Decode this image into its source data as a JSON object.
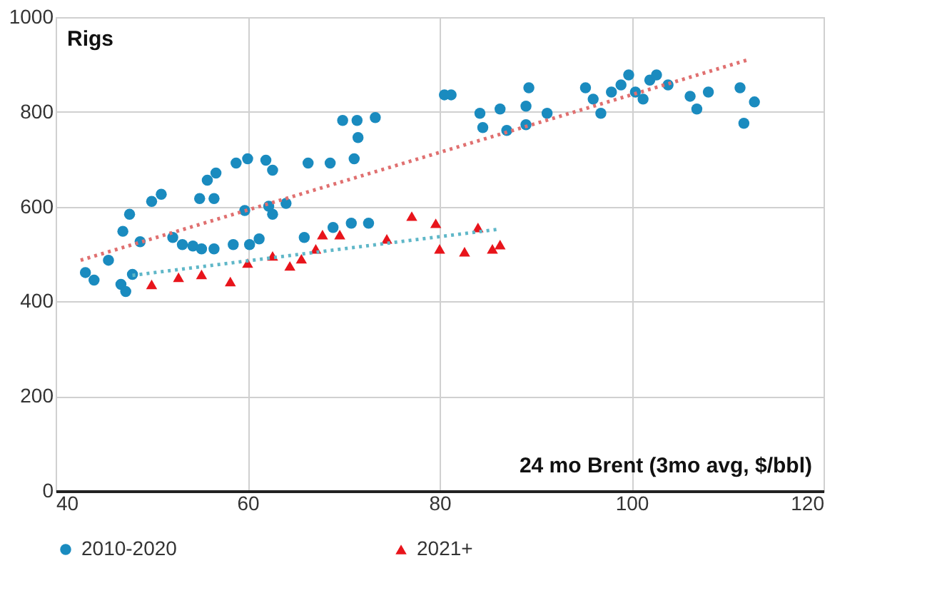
{
  "chart_data": {
    "type": "scatter",
    "ylabel": "Rigs",
    "xlabel": "24 mo Brent (3mo avg, $/bbl)",
    "xlim": [
      40,
      120
    ],
    "xticks": [
      40,
      60,
      80,
      100,
      120
    ],
    "ylim": [
      0,
      1000
    ],
    "yticks": [
      0,
      200,
      400,
      600,
      800,
      1000
    ],
    "grid": true,
    "legend": "bottom",
    "series": [
      {
        "name": "2010-2020",
        "color": "#1a8bbf",
        "marker": "circle",
        "x": [
          43.1,
          44.0,
          45.5,
          46.8,
          47.3,
          48.0,
          47.0,
          47.7,
          48.8,
          50.0,
          51.0,
          52.2,
          53.2,
          54.3,
          55.2,
          56.5,
          58.5,
          60.2,
          61.2,
          55.0,
          55.8,
          56.7,
          58.8,
          60.0,
          61.9,
          62.6,
          56.5,
          59.7,
          62.2,
          64.0,
          62.6,
          66.3,
          68.6,
          71.1,
          65.9,
          68.9,
          70.8,
          72.6,
          69.9,
          71.4,
          73.3,
          71.5,
          80.5,
          81.2,
          84.2,
          84.5,
          86.3,
          87.0,
          89.0,
          89.3,
          89.0,
          91.2,
          95.2,
          96.0,
          96.8,
          97.9,
          98.9,
          99.7,
          100.4,
          101.2,
          101.9,
          102.6,
          103.8,
          106.1,
          106.8,
          108.0,
          111.3,
          111.7,
          112.8
        ],
        "values": [
          461,
          445,
          487,
          436,
          421,
          457,
          548,
          584,
          526,
          611,
          626,
          535,
          520,
          517,
          511,
          511,
          520,
          520,
          532,
          617,
          656,
          671,
          692,
          701,
          698,
          677,
          617,
          592,
          601,
          607,
          584,
          692,
          692,
          701,
          535,
          556,
          565,
          565,
          782,
          782,
          788,
          746,
          836,
          836,
          797,
          767,
          806,
          761,
          812,
          851,
          773,
          797,
          851,
          827,
          797,
          842,
          857,
          878,
          842,
          827,
          867,
          878,
          857,
          833,
          806,
          842,
          851,
          776,
          821
        ]
      },
      {
        "name": "2021+",
        "color": "#e8141b",
        "marker": "triangle",
        "x": [
          50.0,
          52.8,
          55.2,
          58.2,
          60.0,
          62.6,
          64.4,
          65.6,
          67.1,
          67.8,
          69.6,
          74.5,
          77.1,
          79.6,
          80.0,
          82.6,
          84.0,
          85.5,
          86.3
        ],
        "values": [
          436,
          451,
          457,
          442,
          481,
          496,
          475,
          490,
          511,
          541,
          541,
          532,
          580,
          565,
          511,
          505,
          556,
          511,
          520
        ]
      },
      {
        "type": "line",
        "color": "#e07070",
        "line_style": "dotted",
        "x": [
          42.6,
          112.3
        ],
        "values": [
          487,
          911
        ]
      },
      {
        "type": "line",
        "color": "#5fb7c8",
        "line_style": "dotted",
        "x": [
          48.0,
          86.0
        ],
        "values": [
          455,
          552
        ]
      }
    ]
  }
}
